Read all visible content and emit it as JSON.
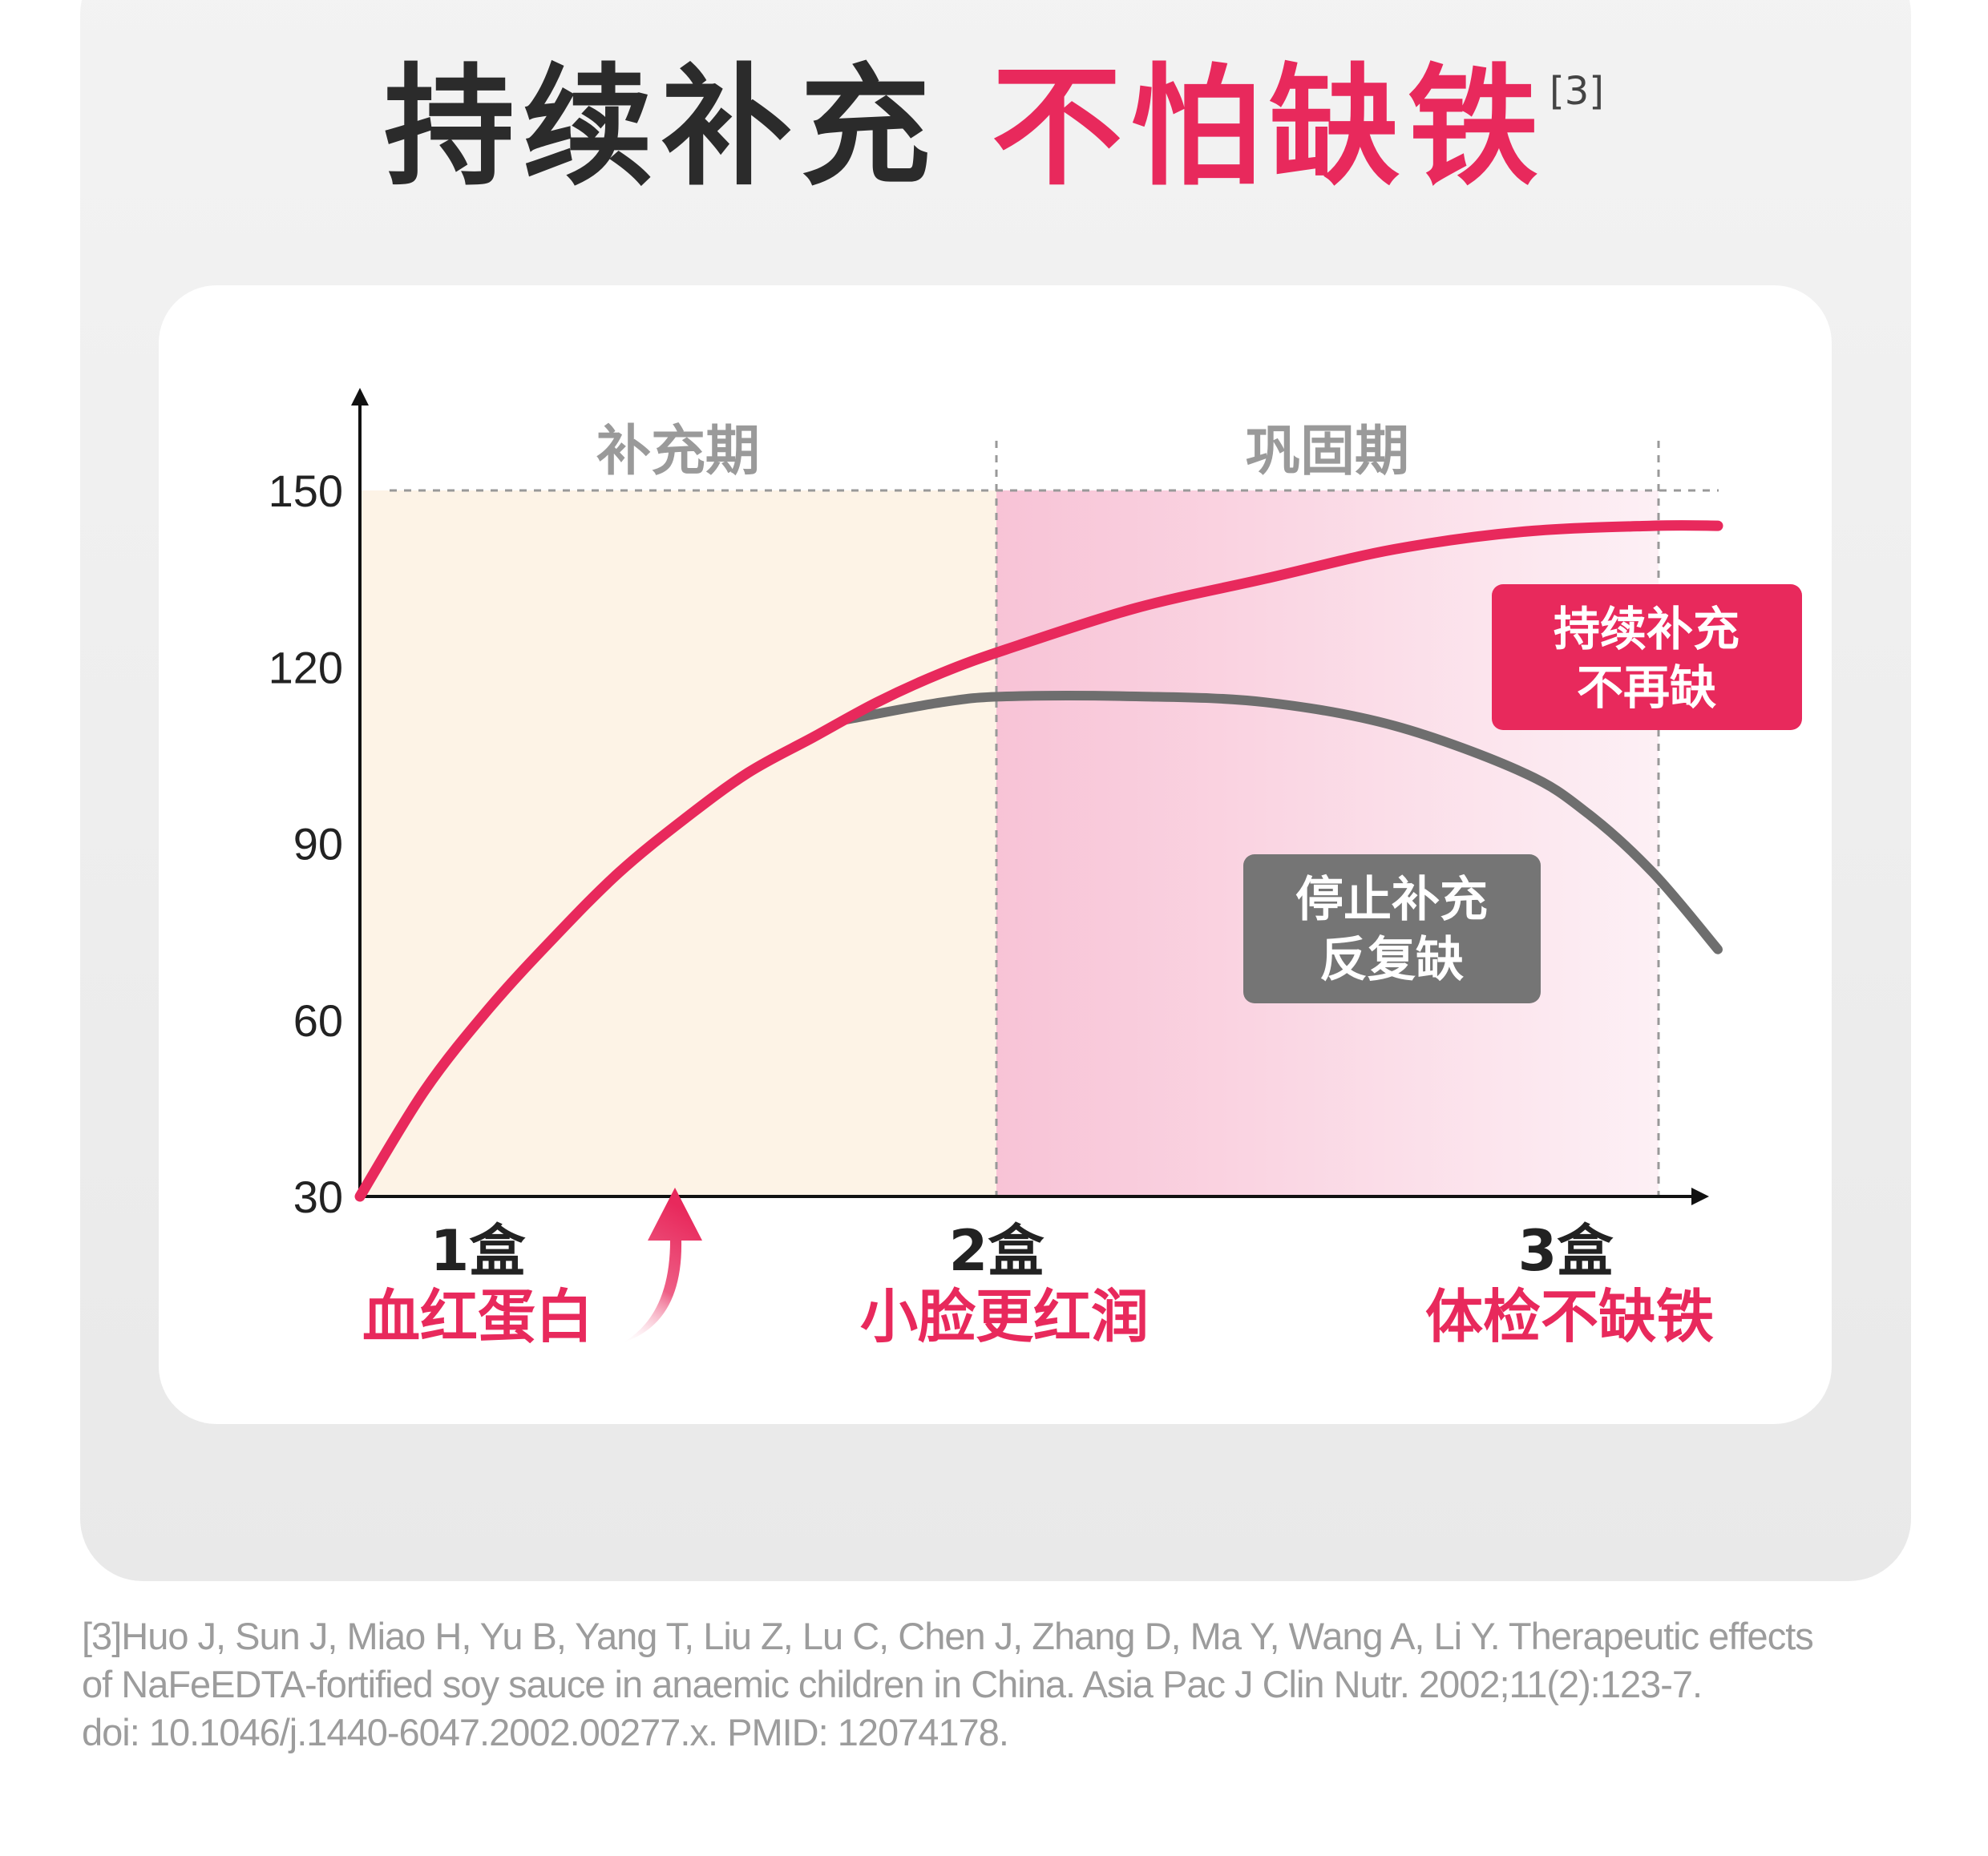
{
  "title": {
    "part1": "持续补充",
    "part2": "不怕缺铁",
    "ref_mark": "[3]"
  },
  "phases": {
    "phase1": "补充期",
    "phase2": "巩固期"
  },
  "callouts": {
    "continue_line1": "持续补充",
    "continue_line2": "不再缺",
    "stop_line1": "停止补充",
    "stop_line2": "反复缺"
  },
  "x_labels": [
    {
      "box": "1盒",
      "note": "血红蛋白"
    },
    {
      "box": "2盒",
      "note": "小脸更红润"
    },
    {
      "box": "3盒",
      "note": "体检不缺铁"
    }
  ],
  "colors": {
    "accent": "#e8295c",
    "gray_line": "#6e6e6e",
    "phase1_fill": "#fdf3e6",
    "phase2_fill": "#f9c9da"
  },
  "chart_data": {
    "type": "line",
    "y_ticks": [
      30,
      60,
      90,
      120,
      150
    ],
    "ylim": [
      30,
      150
    ],
    "xlim": [
      0,
      2.1
    ],
    "x_ticks": [
      0,
      1,
      2
    ],
    "x_tick_labels": [
      "1盒",
      "2盒",
      "3盒"
    ],
    "series": [
      {
        "name": "持续补充",
        "color": "#e8295c",
        "x": [
          0,
          0.1,
          0.2,
          0.3,
          0.4,
          0.5,
          0.6,
          0.7,
          0.8,
          0.9,
          1.0,
          1.2,
          1.4,
          1.6,
          1.8,
          2.0,
          2.1
        ],
        "y": [
          30,
          48,
          62,
          74,
          85,
          94,
          102,
          108,
          114,
          119,
          123,
          130,
          135,
          140,
          143,
          144,
          144
        ]
      },
      {
        "name": "停止补充",
        "color": "#6e6e6e",
        "x": [
          0.75,
          0.9,
          1.0,
          1.2,
          1.4,
          1.6,
          1.8,
          1.9,
          2.0,
          2.1
        ],
        "y": [
          111,
          114,
          115,
          115,
          114,
          110,
          102,
          95,
          85,
          72
        ]
      }
    ],
    "grid": "dashed gridline at 150 only"
  },
  "reference": {
    "line1": "[3]Huo J, Sun J, Miao H, Yu B, Yang T, Liu Z, Lu C, Chen J, Zhang D, Ma Y, Wang A, Li Y. Therapeutic effects",
    "line2": "of NaFeEDTA-fortified soy sauce in anaemic children in China. Asia Pac J Clin Nutr. 2002;11(2):123-7.",
    "line3": "doi: 10.1046/j.1440-6047.2002.00277.x. PMID: 12074178."
  }
}
